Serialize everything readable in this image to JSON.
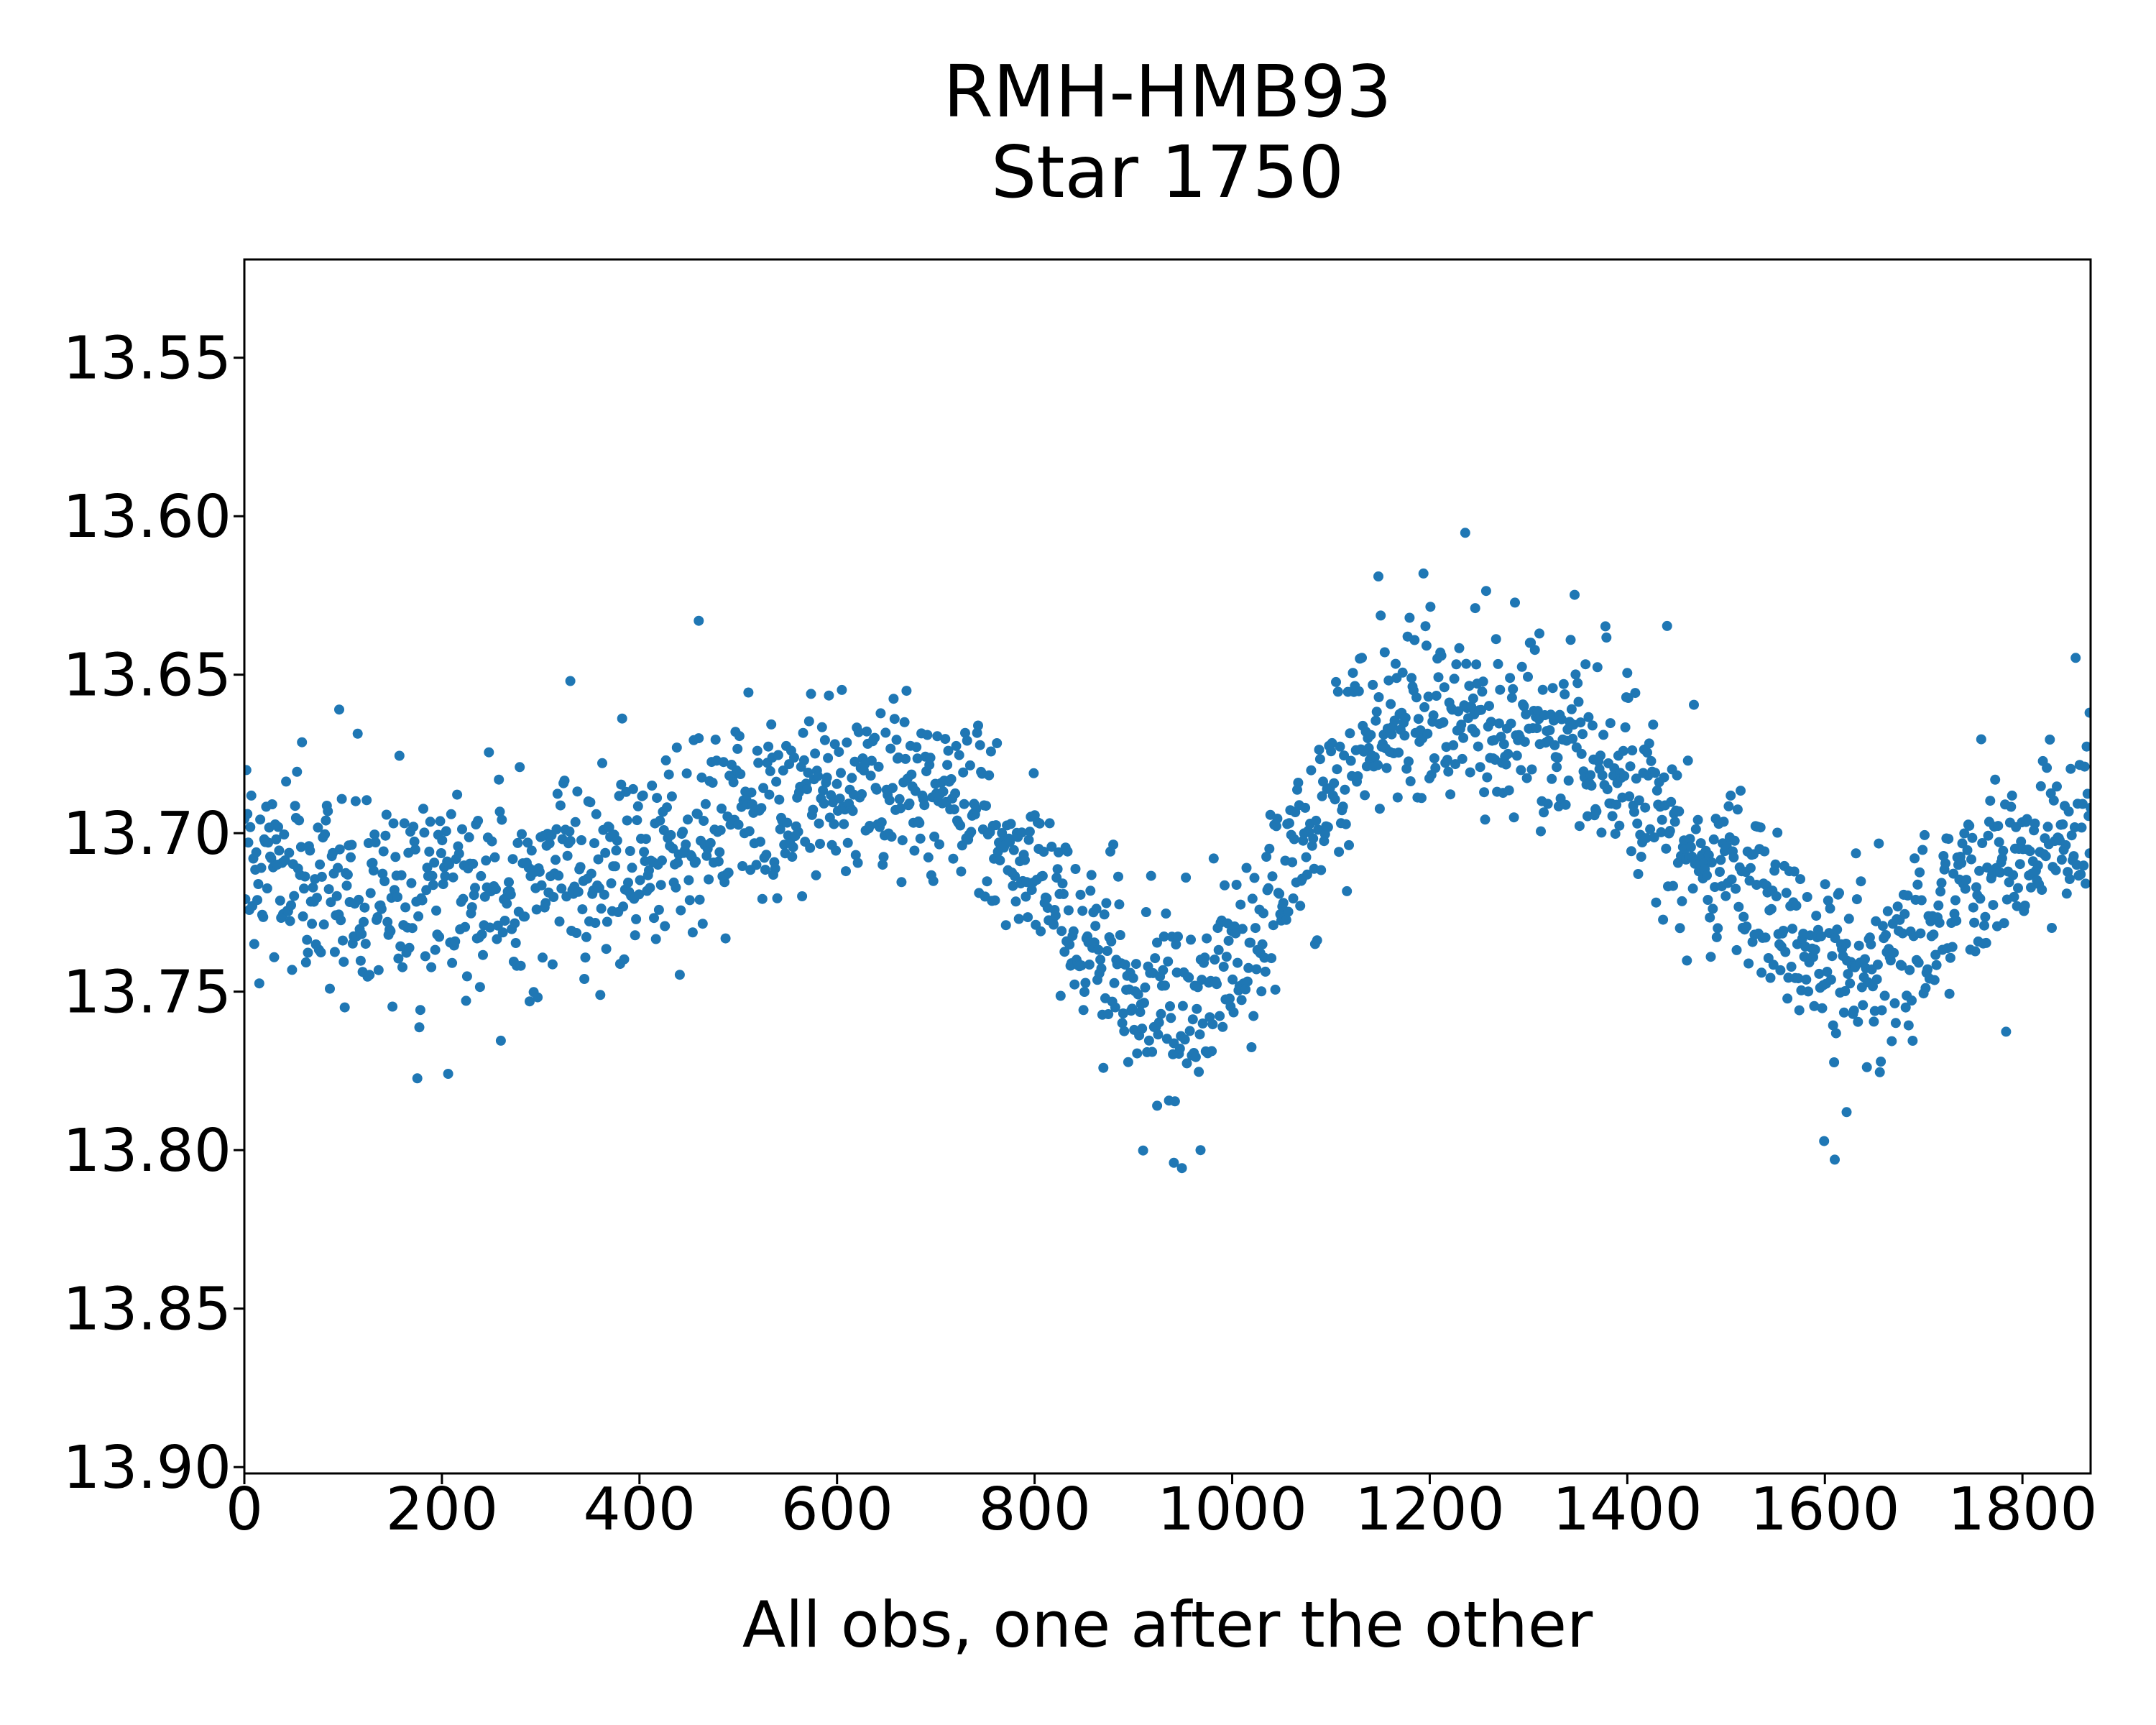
{
  "figure": {
    "title_line1": "RMH-HMB93",
    "title_line2": "Star 1750",
    "xlabel": "All obs, one after the other"
  },
  "chart_data": {
    "type": "scatter",
    "title": "RMH-HMB93\nStar 1750",
    "xlabel": "All obs, one after the other",
    "ylabel": "",
    "grid": false,
    "legend": null,
    "marker_color": "#1f77b4",
    "marker_radius_px": 7,
    "x_ticks": [
      0,
      200,
      400,
      600,
      800,
      1000,
      1200,
      1400,
      1600,
      1800
    ],
    "x_tick_labels": [
      "0",
      "200",
      "400",
      "600",
      "800",
      "1000",
      "1200",
      "1400",
      "1600",
      "1800"
    ],
    "y_ticks": [
      13.55,
      13.6,
      13.65,
      13.7,
      13.75,
      13.8,
      13.85,
      13.9
    ],
    "y_tick_labels": [
      "13.55",
      "13.60",
      "13.65",
      "13.70",
      "13.75",
      "13.80",
      "13.85",
      "13.90"
    ],
    "xlim": [
      0,
      1869
    ],
    "ylim_bottom_top": [
      13.902,
      13.519
    ],
    "y_axis_inverted": true,
    "n_points": 1858,
    "noise_sigma_mag": 0.0145,
    "outlier_fraction": 0.008,
    "outlier_min_offset_mag": 0.04,
    "outlier_max_offset_mag": 0.062,
    "seed": 11,
    "trend": {
      "x": [
        0,
        80,
        160,
        240,
        320,
        400,
        480,
        560,
        620,
        680,
        740,
        800,
        860,
        900,
        940,
        980,
        1020,
        1060,
        1100,
        1140,
        1180,
        1220,
        1260,
        1320,
        1380,
        1440,
        1500,
        1540,
        1580,
        1620,
        1660,
        1700,
        1740,
        1780,
        1820,
        1869
      ],
      "mag": [
        13.712,
        13.715,
        13.719,
        13.72,
        13.714,
        13.706,
        13.697,
        13.689,
        13.684,
        13.686,
        13.697,
        13.714,
        13.734,
        13.748,
        13.753,
        13.75,
        13.734,
        13.71,
        13.682,
        13.667,
        13.661,
        13.661,
        13.664,
        13.669,
        13.679,
        13.694,
        13.71,
        13.722,
        13.735,
        13.747,
        13.743,
        13.73,
        13.719,
        13.711,
        13.704,
        13.698
      ]
    },
    "notable_points": [
      [
        96,
        13.661
      ],
      [
        330,
        13.652
      ],
      [
        460,
        13.633
      ],
      [
        1148,
        13.619
      ],
      [
        1246,
        13.629
      ],
      [
        1311,
        13.637
      ],
      [
        924,
        13.786
      ],
      [
        941,
        13.804
      ],
      [
        968,
        13.8
      ],
      [
        1610,
        13.803
      ],
      [
        1622,
        13.788
      ],
      [
        1868,
        13.662
      ]
    ]
  }
}
